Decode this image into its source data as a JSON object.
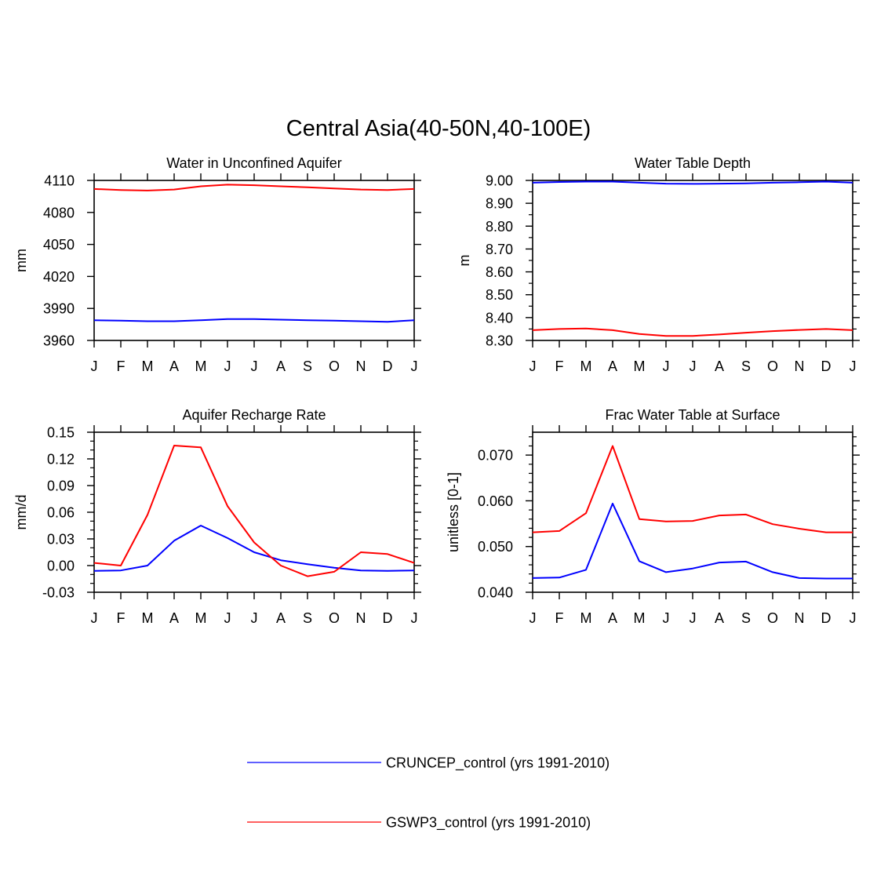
{
  "title": "Central Asia(40-50N,40-100E)",
  "months": [
    "J",
    "F",
    "M",
    "A",
    "M",
    "J",
    "J",
    "A",
    "S",
    "O",
    "N",
    "D",
    "J"
  ],
  "colors": {
    "series_a": "#0000ff",
    "series_b": "#ff0000",
    "axis": "#000000"
  },
  "legend": [
    {
      "label": "CRUNCEP_control (yrs 1991-2010)",
      "color": "#0000ff"
    },
    {
      "label": "GSWP3_control (yrs 1991-2010)",
      "color": "#ff0000"
    }
  ],
  "chart_data": [
    {
      "type": "line",
      "title": "Water in Unconfined Aquifer",
      "ylabel": "mm",
      "ylim": [
        3960,
        4110
      ],
      "yticks": [
        "3960",
        "3990",
        "4020",
        "4050",
        "4080",
        "4110"
      ],
      "series": [
        {
          "name": "CRUNCEP_control (yrs 1991-2010)",
          "values": [
            3979,
            3978.5,
            3978,
            3978,
            3979,
            3980,
            3980,
            3979.5,
            3979,
            3978.5,
            3978,
            3977.5,
            3979
          ]
        },
        {
          "name": "GSWP3_control (yrs 1991-2010)",
          "values": [
            4102,
            4101,
            4100.5,
            4101.5,
            4104.5,
            4106,
            4105.5,
            4104.5,
            4103.5,
            4102.5,
            4101.5,
            4101,
            4102
          ]
        }
      ]
    },
    {
      "type": "line",
      "title": "Water Table Depth",
      "ylabel": "m",
      "ylim": [
        8.3,
        9.0
      ],
      "yticks": [
        "8.30",
        "8.40",
        "8.50",
        "8.60",
        "8.70",
        "8.80",
        "8.90",
        "9.00"
      ],
      "series": [
        {
          "name": "CRUNCEP_control (yrs 1991-2010)",
          "values": [
            8.99,
            8.993,
            8.995,
            8.995,
            8.99,
            8.986,
            8.985,
            8.986,
            8.987,
            8.99,
            8.992,
            8.995,
            8.99
          ]
        },
        {
          "name": "GSWP3_control (yrs 1991-2010)",
          "values": [
            8.345,
            8.35,
            8.352,
            8.345,
            8.328,
            8.32,
            8.32,
            8.326,
            8.334,
            8.341,
            8.346,
            8.35,
            8.345
          ]
        }
      ]
    },
    {
      "type": "line",
      "title": "Aquifer Recharge Rate",
      "ylabel": "mm/d",
      "ylim": [
        -0.03,
        0.15
      ],
      "yticks": [
        "-0.03",
        "0.00",
        "0.03",
        "0.06",
        "0.09",
        "0.12",
        "0.15"
      ],
      "series": [
        {
          "name": "CRUNCEP_control (yrs 1991-2010)",
          "values": [
            -0.006,
            -0.0055,
            0.0,
            0.028,
            0.045,
            0.031,
            0.015,
            0.006,
            0.0015,
            -0.0025,
            -0.0055,
            -0.006,
            -0.0055
          ]
        },
        {
          "name": "GSWP3_control (yrs 1991-2010)",
          "values": [
            0.003,
            0.0,
            0.057,
            0.135,
            0.133,
            0.067,
            0.026,
            0.0,
            -0.012,
            -0.007,
            0.015,
            0.013,
            0.003
          ]
        }
      ]
    },
    {
      "type": "line",
      "title": "Frac Water Table at Surface",
      "ylabel": "unitless [0-1]",
      "ylim": [
        0.04,
        0.075
      ],
      "yticks": [
        "0.040",
        "0.050",
        "0.060",
        "0.070"
      ],
      "series": [
        {
          "name": "CRUNCEP_control (yrs 1991-2010)",
          "values": [
            0.0431,
            0.0432,
            0.0449,
            0.0594,
            0.0468,
            0.0444,
            0.0452,
            0.0465,
            0.0467,
            0.0444,
            0.0431,
            0.043,
            0.043
          ]
        },
        {
          "name": "GSWP3_control (yrs 1991-2010)",
          "values": [
            0.0531,
            0.0534,
            0.0573,
            0.072,
            0.056,
            0.0555,
            0.0556,
            0.0568,
            0.057,
            0.0549,
            0.0539,
            0.0531,
            0.0531
          ]
        }
      ]
    }
  ]
}
